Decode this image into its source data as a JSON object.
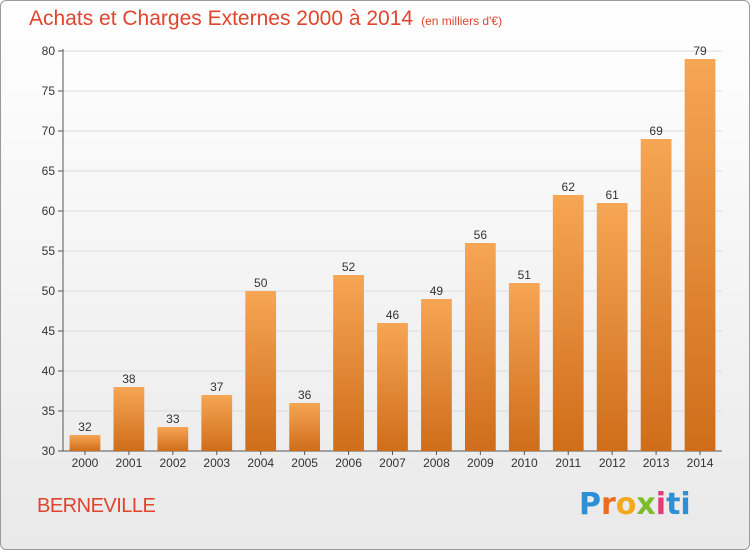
{
  "header": {
    "title": "Achats et Charges Externes 2000 à 2014",
    "unit": "(en milliers d'€)"
  },
  "footer": {
    "commune": "BERNEVILLE",
    "logo_letters": [
      "P",
      "r",
      "o",
      "x",
      "i",
      "ti"
    ]
  },
  "colors": {
    "title": "#e0442e",
    "bar_top": "#f6a654",
    "bar_bottom": "#cf6d1a",
    "grid": "#dcdcdc",
    "axis_text": "#333333"
  },
  "chart_data": {
    "type": "bar",
    "title": "Achats et Charges Externes 2000 à 2014",
    "xlabel": "",
    "ylabel": "",
    "categories": [
      "2000",
      "2001",
      "2002",
      "2003",
      "2004",
      "2005",
      "2006",
      "2007",
      "2008",
      "2009",
      "2010",
      "2011",
      "2012",
      "2013",
      "2014"
    ],
    "values": [
      32,
      38,
      33,
      37,
      50,
      36,
      52,
      46,
      49,
      56,
      51,
      62,
      61,
      69,
      79
    ],
    "ylim": [
      30,
      80
    ],
    "yticks": [
      30,
      35,
      40,
      45,
      50,
      55,
      60,
      65,
      70,
      75,
      80
    ],
    "grid": true,
    "legend": "none"
  }
}
